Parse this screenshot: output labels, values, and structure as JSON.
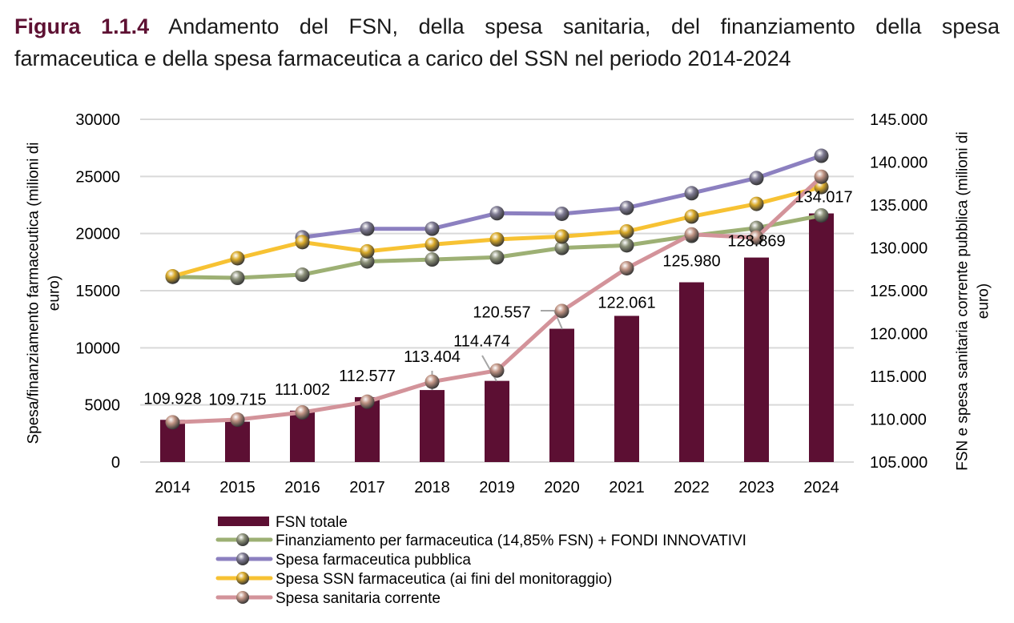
{
  "figure": {
    "label": "Figura 1.1.4",
    "title_line1": "Andamento del FSN, della spesa sanitaria, del finanziamento della spesa",
    "title_line2": "farmaceutica e della spesa farmaceutica a carico del SSN nel periodo 2014-2024"
  },
  "chart_data": {
    "type": "bar+line",
    "title": "Figura 1.1.4 Andamento del FSN, della spesa sanitaria, del finanziamento della spesa farmaceutica e della spesa farmaceutica a carico del SSN nel periodo 2014-2024",
    "categories": [
      "2014",
      "2015",
      "2016",
      "2017",
      "2018",
      "2019",
      "2020",
      "2021",
      "2022",
      "2023",
      "2024"
    ],
    "xlabel": "",
    "left_axis": {
      "title_line1": "Spesa/finanziamento farmaceutica (milioni di",
      "title_line2": "euro)",
      "range": [
        0,
        30000
      ],
      "ticks": [
        0,
        5000,
        10000,
        15000,
        20000,
        25000,
        30000
      ],
      "tick_labels": [
        "0",
        "5000",
        "10000",
        "15000",
        "20000",
        "25000",
        "30000"
      ]
    },
    "right_axis": {
      "title_line1": "FSN e spesa sanitaria corrente pubblica (milioni di",
      "title_line2": "euro)",
      "range": [
        105000,
        145000
      ],
      "ticks": [
        105000,
        110000,
        115000,
        120000,
        125000,
        130000,
        135000,
        140000,
        145000
      ],
      "tick_labels": [
        "105.000",
        "110.000",
        "115.000",
        "120.000",
        "125.000",
        "130.000",
        "135.000",
        "140.000",
        "145.000"
      ]
    },
    "grid": true,
    "legend_position": "bottom",
    "series": [
      {
        "name": "FSN totale",
        "type": "bar",
        "axis": "right",
        "color": "#5c0f33",
        "values": [
          109928,
          109715,
          111002,
          112577,
          113404,
          114474,
          120557,
          122061,
          125980,
          128869,
          134017
        ],
        "data_labels": [
          "109.928",
          "109.715",
          "111.002",
          "112.577",
          "113.404",
          "114.474",
          "120.557",
          "122.061",
          "125.980",
          "128.869",
          "134.017"
        ]
      },
      {
        "name": "Finanziamento per farmaceutica (14,85% FSN) + FONDI INNOVATIVI",
        "type": "line",
        "axis": "left",
        "color": "#9db074",
        "marker_color": "#8d927a",
        "values": [
          16210,
          16120,
          16400,
          17560,
          17730,
          17920,
          18740,
          18970,
          19800,
          20490,
          21590
        ]
      },
      {
        "name": "Spesa farmaceutica pubblica",
        "type": "line",
        "axis": "left",
        "color": "#8c80c0",
        "marker_color": "#7e7a92",
        "values": [
          null,
          null,
          19670,
          20420,
          20420,
          21780,
          21730,
          22250,
          23530,
          24860,
          26810
        ]
      },
      {
        "name": "Spesa SSN farmaceutica (ai fini del monitoraggio)",
        "type": "line",
        "axis": "left",
        "color": "#f7c233",
        "marker_color": "#d9aa2a",
        "values": [
          16260,
          17840,
          19250,
          18440,
          19040,
          19490,
          19740,
          20190,
          21490,
          22600,
          24070
        ]
      },
      {
        "name": "Spesa sanitaria corrente",
        "type": "line",
        "axis": "right",
        "color": "#d3939a",
        "marker_color": "#c09484",
        "values": [
          109640,
          109950,
          110790,
          112040,
          114370,
          115680,
          122630,
          127620,
          131570,
          131200,
          138300
        ]
      }
    ]
  }
}
